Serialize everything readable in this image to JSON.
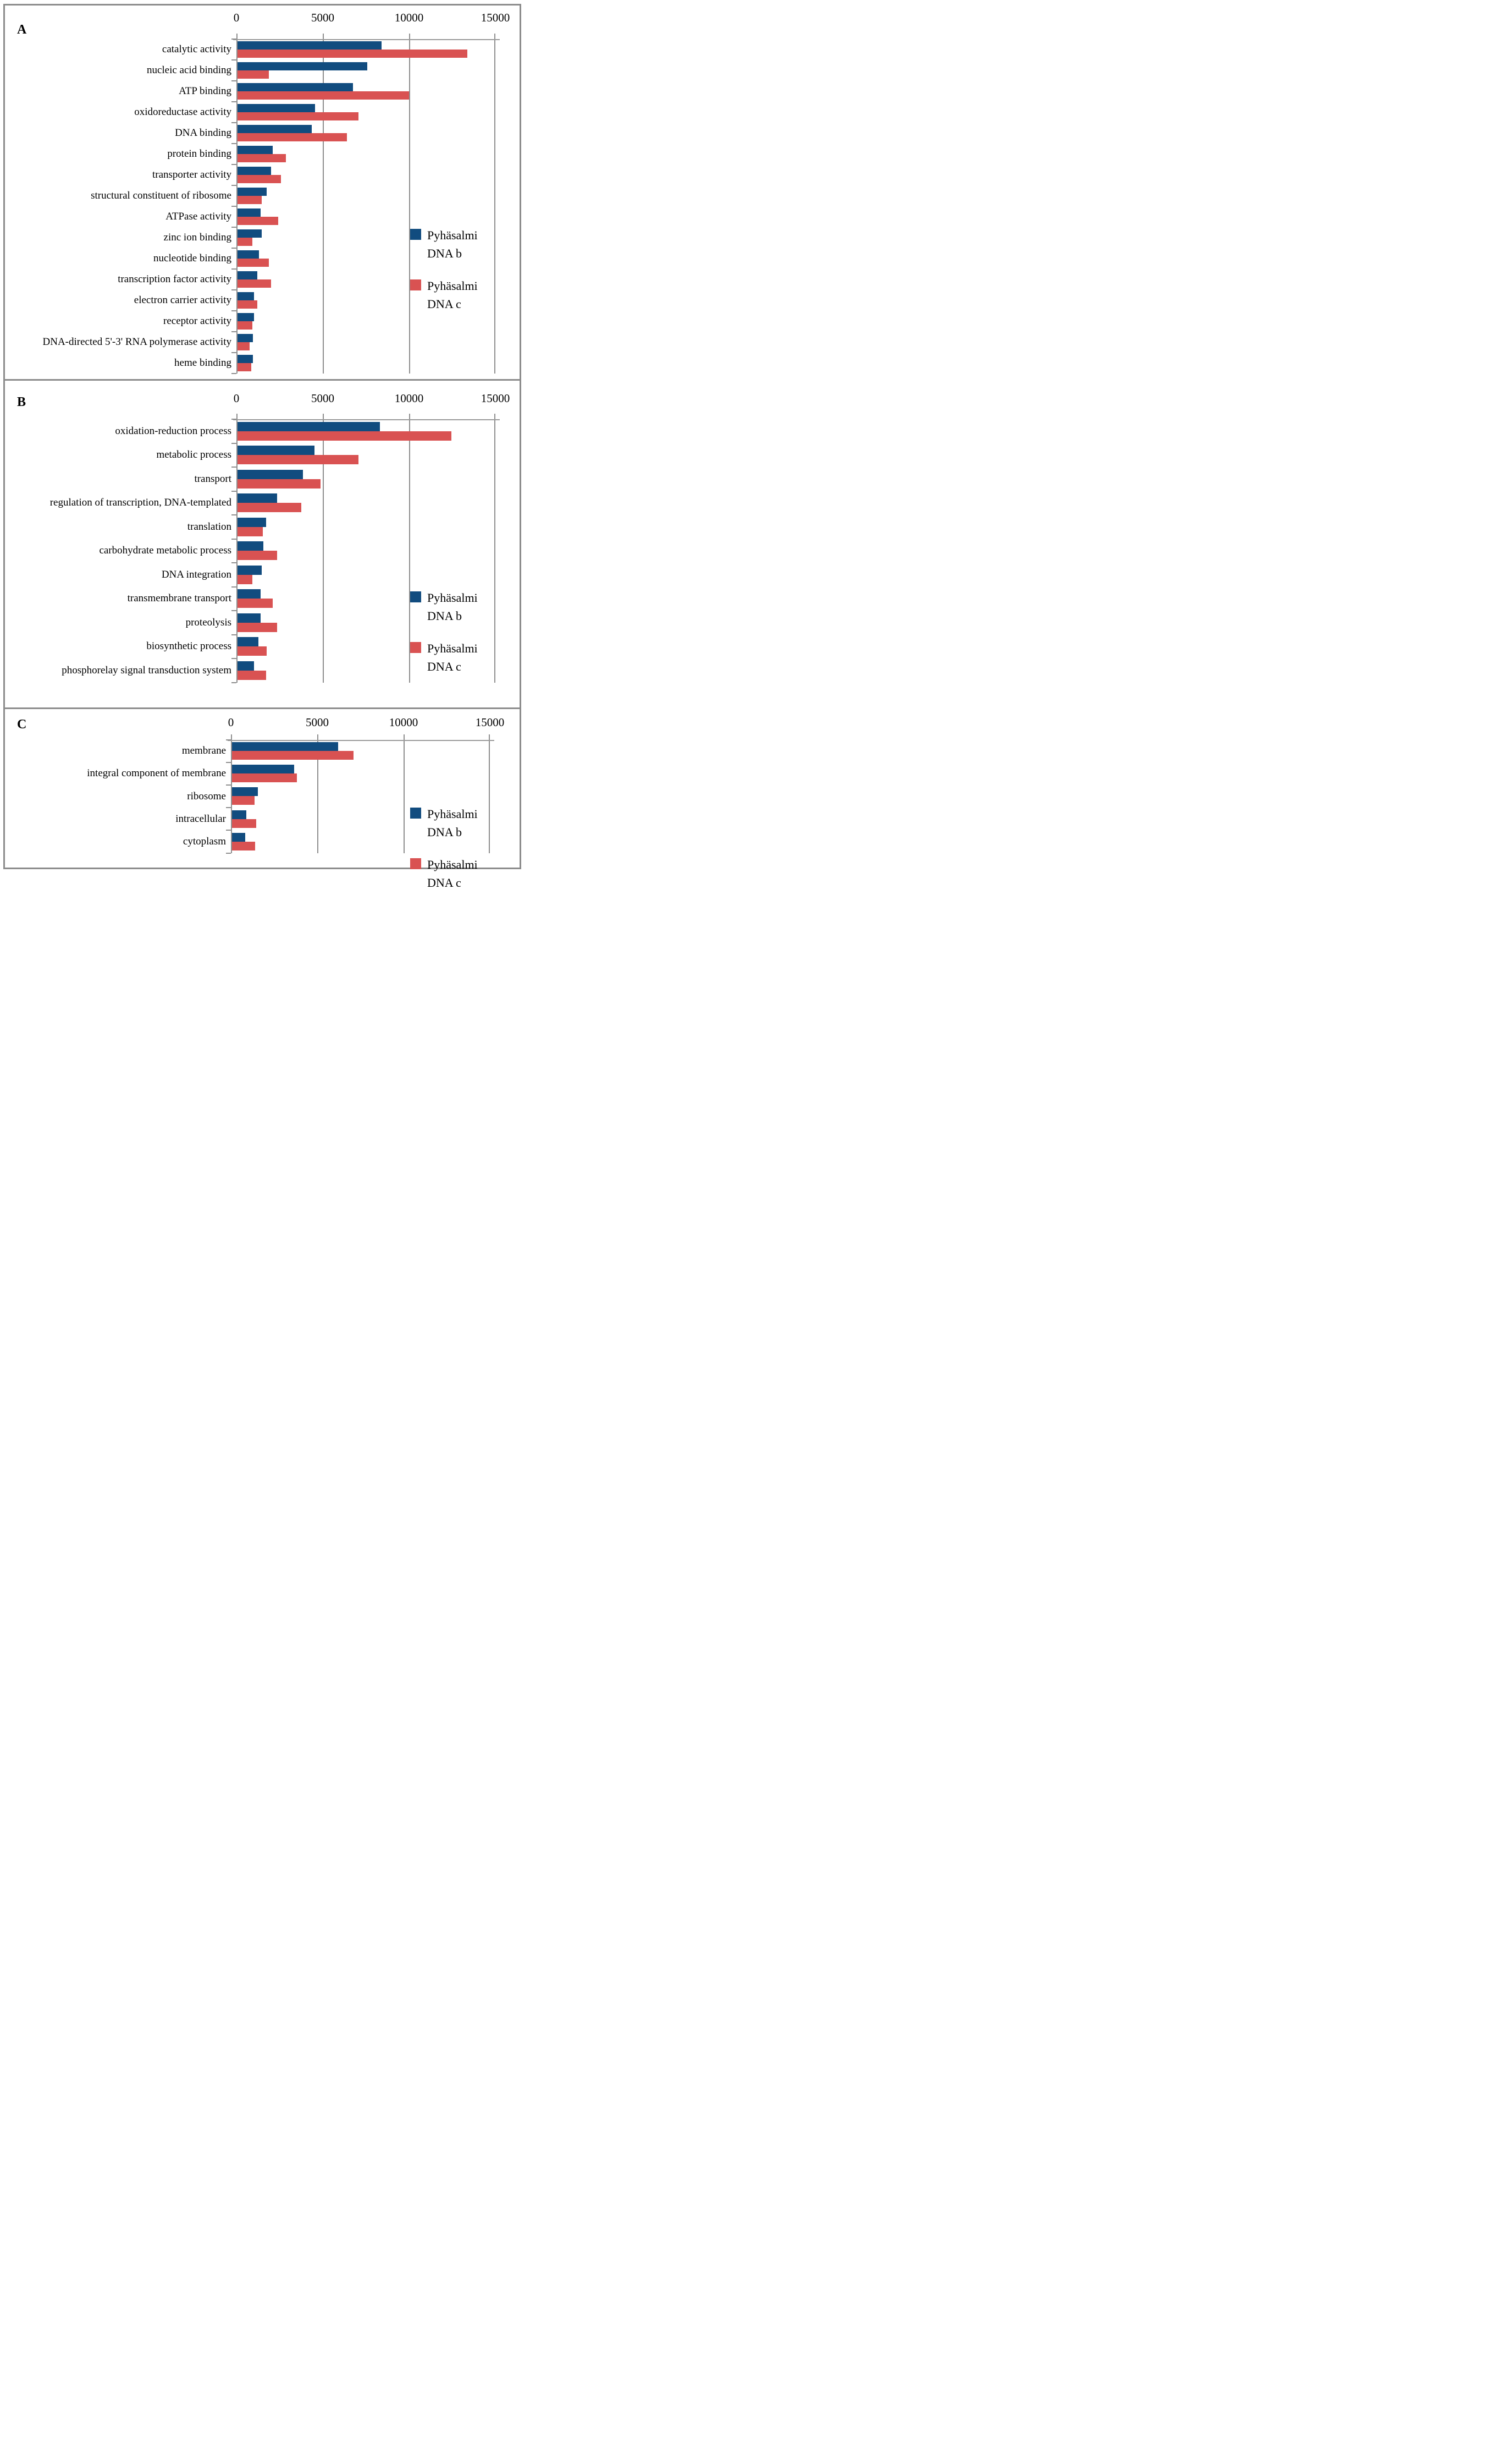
{
  "figure": {
    "axis": {
      "tick_labels": [
        "0",
        "5000",
        "10000",
        "15000"
      ],
      "min": 0,
      "max": 15000
    },
    "legend": {
      "items": [
        {
          "series": "b",
          "color": "#114C7F",
          "lines": [
            "Pyhäsalmi",
            "DNA b"
          ]
        },
        {
          "series": "c",
          "color": "#D95252",
          "lines": [
            "Pyhäsalmi",
            "DNA c"
          ]
        }
      ]
    },
    "colors": {
      "series_b": "#114C7F",
      "series_c": "#D95252",
      "gridline": "#8f8f8f",
      "axis_line": "#9b9b9b",
      "panel_border": "#8c8c8c"
    }
  },
  "chart_data": [
    {
      "panel": "A",
      "type": "bar",
      "orientation": "horizontal",
      "xlim": [
        0,
        15000
      ],
      "x_tick_labels": [
        "0",
        "5000",
        "10000",
        "15000"
      ],
      "grid": "vertical-gridlines-on",
      "legend_position": "inside-right",
      "categories": [
        "catalytic activity",
        "nucleic acid binding",
        "ATP binding",
        "oxidoreductase activity",
        "DNA binding",
        "protein binding",
        "transporter activity",
        "structural constituent of ribosome",
        "ATPase activity",
        "zinc ion binding",
        "nucleotide binding",
        "transcription factor activity",
        "electron carrier activity",
        "receptor activity",
        "DNA-directed 5'-3' RNA polymerase activity",
        "heme binding"
      ],
      "series": [
        {
          "name": "Pyhäsalmi DNA b",
          "color": "#114C7F",
          "values": [
            8350,
            7500,
            6700,
            4500,
            4300,
            2050,
            1950,
            1700,
            1350,
            1400,
            1250,
            1150,
            950,
            950,
            900,
            900
          ]
        },
        {
          "name": "Pyhäsalmi DNA c",
          "color": "#D95252",
          "values": [
            13300,
            1800,
            9950,
            7000,
            6350,
            2800,
            2500,
            1400,
            2350,
            850,
            1800,
            1950,
            1150,
            850,
            700,
            800
          ]
        }
      ]
    },
    {
      "panel": "B",
      "type": "bar",
      "orientation": "horizontal",
      "xlim": [
        0,
        15000
      ],
      "x_tick_labels": [
        "0",
        "5000",
        "10000",
        "15000"
      ],
      "grid": "vertical-gridlines-on",
      "legend_position": "inside-right",
      "categories": [
        "oxidation-reduction process",
        "metabolic process",
        "transport",
        "regulation of transcription, DNA-templated",
        "translation",
        "carbohydrate metabolic process",
        "DNA integration",
        "transmembrane transport",
        "proteolysis",
        "biosynthetic process",
        "phosphorelay signal transduction system"
      ],
      "series": [
        {
          "name": "Pyhäsalmi DNA b",
          "color": "#114C7F",
          "values": [
            8250,
            4450,
            3800,
            2300,
            1650,
            1500,
            1400,
            1350,
            1350,
            1200,
            950
          ]
        },
        {
          "name": "Pyhäsalmi DNA c",
          "color": "#D95252",
          "values": [
            12400,
            7000,
            4800,
            3700,
            1450,
            2300,
            850,
            2050,
            2300,
            1700,
            1650
          ]
        }
      ]
    },
    {
      "panel": "C",
      "type": "bar",
      "orientation": "horizontal",
      "xlim": [
        0,
        15000
      ],
      "x_tick_labels": [
        "0",
        "5000",
        "10000",
        "15000"
      ],
      "grid": "vertical-gridlines-on",
      "legend_position": "inside-right",
      "categories": [
        "membrane",
        "integral component of membrane",
        "ribosome",
        "intracellular",
        "cytoplasm"
      ],
      "series": [
        {
          "name": "Pyhäsalmi DNA b",
          "color": "#114C7F",
          "values": [
            6150,
            3600,
            1500,
            820,
            750
          ]
        },
        {
          "name": "Pyhäsalmi DNA c",
          "color": "#D95252",
          "values": [
            7050,
            3750,
            1300,
            1400,
            1350
          ]
        }
      ]
    }
  ]
}
